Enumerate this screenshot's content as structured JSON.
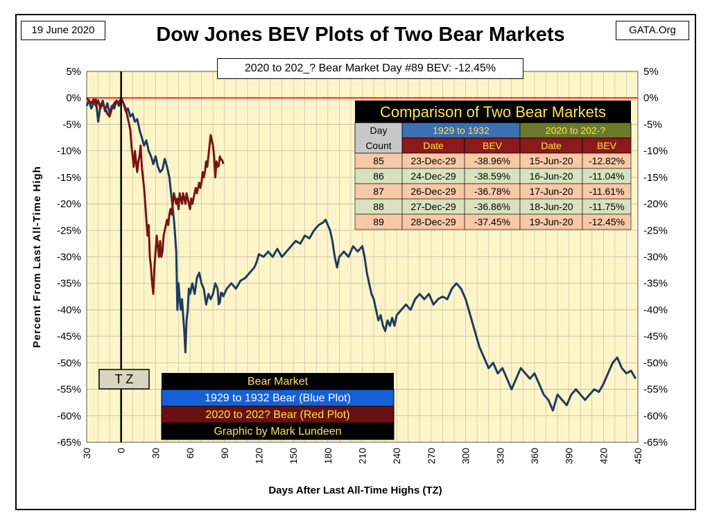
{
  "header": {
    "date": "19 June 2020",
    "source": "GATA.Org",
    "title": "Dow Jones BEV Plots of Two Bear Markets",
    "bev_callout": "2020 to 202_? Bear Market Day #89 BEV: -12.45%"
  },
  "colors": {
    "plot_background": "#fdf5c9",
    "series_1929": "#1f3a5f",
    "series_2020": "#7a1212",
    "zero_line": "#ff2020",
    "grid": "#b9b9a0"
  },
  "tz_marker": {
    "label": "T Z"
  },
  "legend": {
    "title": "Bear Market",
    "items": [
      {
        "label": "1929 to 1932 Bear (Blue Plot)",
        "color": "#1560d6",
        "text_color": "#ffffff"
      },
      {
        "label": "2020 to 202? Bear (Red Plot)",
        "color": "#6b1010",
        "text_color": "#ffe34d"
      },
      {
        "label": "Graphic by Mark Lundeen",
        "color": "#000000",
        "text_color": "#ffe34d"
      }
    ]
  },
  "table": {
    "title": "Comparison of Two Bear Markets",
    "day_header": [
      "Day",
      "Count"
    ],
    "group_1929": "1929 to 1932",
    "group_2020": "2020 to 202-?",
    "sub_headers": [
      "Date",
      "BEV",
      "Date",
      "BEV"
    ],
    "rows": [
      {
        "day": "85",
        "d1": "23-Dec-29",
        "b1": "-38.96%",
        "d2": "15-Jun-20",
        "b2": "-12.82%"
      },
      {
        "day": "86",
        "d1": "24-Dec-29",
        "b1": "-38.59%",
        "d2": "16-Jun-20",
        "b2": "-11.04%"
      },
      {
        "day": "87",
        "d1": "26-Dec-29",
        "b1": "-36.78%",
        "d2": "17-Jun-20",
        "b2": "-11.61%"
      },
      {
        "day": "88",
        "d1": "27-Dec-29",
        "b1": "-36.86%",
        "d2": "18-Jun-20",
        "b2": "-11.75%"
      },
      {
        "day": "89",
        "d1": "28-Dec-29",
        "b1": "-37.45%",
        "d2": "19-Jun-20",
        "b2": "-12.45%"
      }
    ]
  },
  "chart_data": {
    "type": "line",
    "xlabel": "Days After Last All-Time Highs (TZ)",
    "ylabel": "Percent From Last All-Time High",
    "xlim": [
      -30,
      450
    ],
    "ylim": [
      -65,
      5
    ],
    "x_ticks": [
      -30,
      0,
      30,
      60,
      90,
      120,
      150,
      180,
      210,
      240,
      270,
      300,
      330,
      360,
      390,
      420,
      450
    ],
    "x_tick_labels": [
      "30",
      "0",
      "30",
      "60",
      "90",
      "120",
      "150",
      "180",
      "210",
      "240",
      "270",
      "300",
      "330",
      "360",
      "390",
      "420",
      "450"
    ],
    "y_ticks": [
      5,
      0,
      -5,
      -10,
      -15,
      -20,
      -25,
      -30,
      -35,
      -40,
      -45,
      -50,
      -55,
      -60,
      -65
    ],
    "y_tick_labels": [
      "5%",
      "0%",
      "-5%",
      "-10%",
      "-15%",
      "-20%",
      "-25%",
      "-30%",
      "-35%",
      "-40%",
      "-45%",
      "-50%",
      "-55%",
      "-60%",
      "-65%"
    ],
    "grid": true,
    "series": [
      {
        "name": "1929 to 1932 Bear (Blue Plot)",
        "color": "#1f3a5f",
        "points": [
          [
            -30,
            -1.5
          ],
          [
            -28,
            -0.5
          ],
          [
            -26,
            -2
          ],
          [
            -24,
            -1
          ],
          [
            -22,
            -0.3
          ],
          [
            -20,
            -4.5
          ],
          [
            -18,
            -1.5
          ],
          [
            -16,
            -0.5
          ],
          [
            -14,
            -2.5
          ],
          [
            -12,
            -1
          ],
          [
            -10,
            -3
          ],
          [
            -8,
            -1.5
          ],
          [
            -6,
            -2
          ],
          [
            -4,
            -0.5
          ],
          [
            -2,
            -1.5
          ],
          [
            0,
            0
          ],
          [
            2,
            -1
          ],
          [
            4,
            -2.5
          ],
          [
            6,
            -2
          ],
          [
            8,
            -3.5
          ],
          [
            10,
            -3
          ],
          [
            12,
            -4.5
          ],
          [
            14,
            -4
          ],
          [
            16,
            -6
          ],
          [
            18,
            -7.5
          ],
          [
            20,
            -9
          ],
          [
            22,
            -8
          ],
          [
            24,
            -10
          ],
          [
            26,
            -11
          ],
          [
            28,
            -12.5
          ],
          [
            30,
            -11
          ],
          [
            32,
            -13
          ],
          [
            34,
            -14
          ],
          [
            36,
            -13.5
          ],
          [
            38,
            -11.5
          ],
          [
            40,
            -13
          ],
          [
            42,
            -15
          ],
          [
            44,
            -19
          ],
          [
            46,
            -23
          ],
          [
            48,
            -29
          ],
          [
            49,
            -40
          ],
          [
            50,
            -35
          ],
          [
            51,
            -38
          ],
          [
            52,
            -40
          ],
          [
            53,
            -38
          ],
          [
            54,
            -41
          ],
          [
            55,
            -44
          ],
          [
            56,
            -48
          ],
          [
            57,
            -42
          ],
          [
            58,
            -40
          ],
          [
            59,
            -36
          ],
          [
            60,
            -37
          ],
          [
            62,
            -35
          ],
          [
            64,
            -37
          ],
          [
            66,
            -34
          ],
          [
            68,
            -33
          ],
          [
            70,
            -35
          ],
          [
            72,
            -36
          ],
          [
            74,
            -39
          ],
          [
            76,
            -37
          ],
          [
            78,
            -38
          ],
          [
            80,
            -37
          ],
          [
            82,
            -35
          ],
          [
            84,
            -36
          ],
          [
            85,
            -38.96
          ],
          [
            86,
            -38.59
          ],
          [
            87,
            -36.78
          ],
          [
            88,
            -36.86
          ],
          [
            89,
            -37.45
          ],
          [
            92,
            -36
          ],
          [
            96,
            -35
          ],
          [
            100,
            -36
          ],
          [
            104,
            -34.5
          ],
          [
            108,
            -34
          ],
          [
            112,
            -33
          ],
          [
            116,
            -32
          ],
          [
            118,
            -31
          ],
          [
            120,
            -29.5
          ],
          [
            124,
            -30
          ],
          [
            128,
            -29
          ],
          [
            132,
            -30
          ],
          [
            136,
            -28.5
          ],
          [
            140,
            -30
          ],
          [
            144,
            -29
          ],
          [
            148,
            -28
          ],
          [
            152,
            -27
          ],
          [
            156,
            -27.5
          ],
          [
            160,
            -26
          ],
          [
            164,
            -26.5
          ],
          [
            168,
            -25
          ],
          [
            172,
            -24
          ],
          [
            176,
            -23.5
          ],
          [
            178,
            -23
          ],
          [
            180,
            -24
          ],
          [
            182,
            -25
          ],
          [
            184,
            -27
          ],
          [
            186,
            -30
          ],
          [
            188,
            -32
          ],
          [
            190,
            -30
          ],
          [
            194,
            -29
          ],
          [
            198,
            -30
          ],
          [
            202,
            -28
          ],
          [
            206,
            -29
          ],
          [
            210,
            -28
          ],
          [
            212,
            -30
          ],
          [
            214,
            -33
          ],
          [
            216,
            -35
          ],
          [
            218,
            -37
          ],
          [
            220,
            -38
          ],
          [
            222,
            -40
          ],
          [
            224,
            -42
          ],
          [
            226,
            -41
          ],
          [
            228,
            -43
          ],
          [
            230,
            -44
          ],
          [
            232,
            -42
          ],
          [
            234,
            -43
          ],
          [
            236,
            -41.5
          ],
          [
            238,
            -43
          ],
          [
            240,
            -41
          ],
          [
            244,
            -40
          ],
          [
            248,
            -39
          ],
          [
            252,
            -40
          ],
          [
            256,
            -38
          ],
          [
            260,
            -37
          ],
          [
            264,
            -38
          ],
          [
            268,
            -37
          ],
          [
            272,
            -39
          ],
          [
            276,
            -38
          ],
          [
            280,
            -37.5
          ],
          [
            284,
            -38
          ],
          [
            288,
            -36
          ],
          [
            292,
            -35
          ],
          [
            296,
            -36
          ],
          [
            300,
            -38
          ],
          [
            304,
            -41
          ],
          [
            308,
            -44
          ],
          [
            312,
            -47
          ],
          [
            316,
            -49
          ],
          [
            320,
            -51
          ],
          [
            324,
            -50
          ],
          [
            328,
            -52
          ],
          [
            332,
            -51
          ],
          [
            336,
            -53
          ],
          [
            340,
            -55
          ],
          [
            344,
            -53
          ],
          [
            348,
            -51
          ],
          [
            352,
            -52
          ],
          [
            356,
            -53
          ],
          [
            360,
            -52
          ],
          [
            364,
            -54
          ],
          [
            368,
            -56
          ],
          [
            372,
            -57
          ],
          [
            376,
            -59
          ],
          [
            380,
            -56
          ],
          [
            384,
            -57
          ],
          [
            388,
            -58
          ],
          [
            392,
            -56
          ],
          [
            396,
            -55
          ],
          [
            400,
            -56
          ],
          [
            404,
            -57
          ],
          [
            408,
            -56
          ],
          [
            412,
            -55
          ],
          [
            416,
            -55.5
          ],
          [
            420,
            -54
          ],
          [
            424,
            -52
          ],
          [
            428,
            -50
          ],
          [
            432,
            -49
          ],
          [
            436,
            -51
          ],
          [
            440,
            -52
          ],
          [
            444,
            -51.5
          ],
          [
            448,
            -53
          ]
        ]
      },
      {
        "name": "2020 to 202? Bear (Red Plot)",
        "color": "#7a1212",
        "points": [
          [
            -30,
            0
          ],
          [
            -28,
            -0.5
          ],
          [
            -26,
            -1
          ],
          [
            -24,
            -0.3
          ],
          [
            -22,
            -1.5
          ],
          [
            -20,
            -0.5
          ],
          [
            -18,
            -2
          ],
          [
            -16,
            -1
          ],
          [
            -14,
            -2
          ],
          [
            -12,
            -3
          ],
          [
            -10,
            -3.5
          ],
          [
            -8,
            -2
          ],
          [
            -6,
            -1
          ],
          [
            -4,
            -0.5
          ],
          [
            -2,
            -1
          ],
          [
            0,
            0
          ],
          [
            2,
            -1
          ],
          [
            4,
            -2
          ],
          [
            6,
            -4
          ],
          [
            8,
            -6
          ],
          [
            9,
            -9
          ],
          [
            10,
            -11
          ],
          [
            11,
            -13
          ],
          [
            12,
            -10
          ],
          [
            13,
            -12
          ],
          [
            14,
            -14
          ],
          [
            15,
            -12
          ],
          [
            16,
            -11
          ],
          [
            17,
            -9
          ],
          [
            18,
            -13
          ],
          [
            19,
            -15
          ],
          [
            20,
            -17
          ],
          [
            21,
            -20
          ],
          [
            22,
            -23
          ],
          [
            23,
            -26
          ],
          [
            24,
            -24
          ],
          [
            25,
            -30
          ],
          [
            26,
            -32
          ],
          [
            27,
            -35
          ],
          [
            28,
            -37
          ],
          [
            29,
            -32
          ],
          [
            30,
            -29
          ],
          [
            31,
            -26
          ],
          [
            32,
            -28
          ],
          [
            33,
            -30
          ],
          [
            34,
            -27
          ],
          [
            35,
            -30
          ],
          [
            36,
            -29
          ],
          [
            37,
            -26
          ],
          [
            38,
            -25
          ],
          [
            39,
            -24
          ],
          [
            40,
            -23
          ],
          [
            41,
            -24
          ],
          [
            42,
            -22
          ],
          [
            43,
            -21
          ],
          [
            44,
            -22
          ],
          [
            45,
            -20
          ],
          [
            46,
            -18
          ],
          [
            47,
            -19
          ],
          [
            48,
            -20
          ],
          [
            49,
            -19
          ],
          [
            50,
            -21
          ],
          [
            51,
            -18
          ],
          [
            52,
            -19
          ],
          [
            53,
            -20
          ],
          [
            54,
            -18
          ],
          [
            55,
            -19
          ],
          [
            56,
            -20
          ],
          [
            57,
            -18
          ],
          [
            58,
            -19
          ],
          [
            59,
            -20
          ],
          [
            60,
            -21
          ],
          [
            61,
            -19
          ],
          [
            62,
            -20
          ],
          [
            63,
            -19
          ],
          [
            64,
            -18
          ],
          [
            65,
            -17
          ],
          [
            66,
            -18
          ],
          [
            67,
            -17
          ],
          [
            68,
            -16
          ],
          [
            69,
            -17
          ],
          [
            70,
            -16
          ],
          [
            71,
            -14
          ],
          [
            72,
            -15
          ],
          [
            73,
            -14
          ],
          [
            74,
            -12
          ],
          [
            75,
            -13
          ],
          [
            76,
            -11
          ],
          [
            77,
            -9
          ],
          [
            78,
            -7
          ],
          [
            79,
            -8
          ],
          [
            80,
            -9
          ],
          [
            81,
            -11
          ],
          [
            82,
            -15
          ],
          [
            83,
            -12
          ],
          [
            84,
            -13
          ],
          [
            85,
            -12.82
          ],
          [
            86,
            -11.04
          ],
          [
            87,
            -11.61
          ],
          [
            88,
            -11.75
          ],
          [
            89,
            -12.45
          ]
        ]
      }
    ],
    "reference_lines": [
      {
        "axis": "y",
        "value": 0,
        "color": "#ff2020"
      },
      {
        "axis": "x",
        "value": 0,
        "color": "#000000"
      }
    ]
  }
}
